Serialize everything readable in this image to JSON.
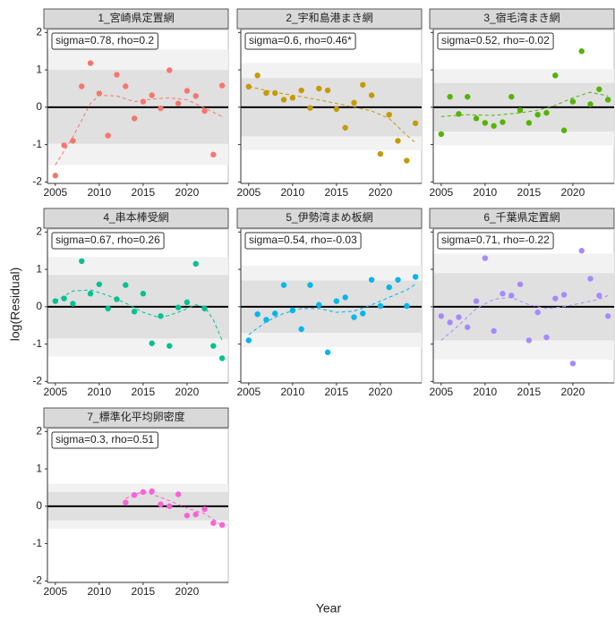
{
  "x_label": "Year",
  "y_label": "log(Residual)",
  "chart_data": [
    {
      "type": "scatter",
      "title": "1_宮崎県定置網",
      "annotation": "sigma=0.78, rho=0.2",
      "color": "#F8766D",
      "x": [
        2005,
        2006,
        2007,
        2008,
        2009,
        2010,
        2011,
        2012,
        2013,
        2014,
        2015,
        2016,
        2017,
        2018,
        2019,
        2020,
        2021,
        2022,
        2023,
        2024
      ],
      "values": [
        -1.83,
        -1.02,
        -0.9,
        0.56,
        1.18,
        0.37,
        -0.76,
        0.87,
        0.56,
        -0.3,
        0.15,
        0.32,
        -0.03,
        0.99,
        0.1,
        0.44,
        0.3,
        -0.1,
        -1.27,
        0.58
      ],
      "trend": {
        "x": [
          2005,
          2007,
          2009,
          2010,
          2012,
          2014,
          2016,
          2018,
          2020,
          2022,
          2024
        ],
        "values": [
          -1.55,
          -0.8,
          0.1,
          0.32,
          0.3,
          0.15,
          0.22,
          0.25,
          0.2,
          -0.02,
          -0.25
        ]
      },
      "band_inner": [
        -0.98,
        1.0
      ],
      "band_outer": [
        -1.55,
        1.55
      ],
      "hline": 0,
      "xlim": [
        2004.1,
        2024.7
      ],
      "ylim": [
        -2.04,
        2.08
      ],
      "xticks": [
        2005,
        2010,
        2015,
        2020
      ],
      "yticks": [
        -2,
        -1,
        0,
        1,
        2
      ]
    },
    {
      "type": "scatter",
      "title": "2_宇和島港まき網",
      "annotation": "sigma=0.6, rho=0.46*",
      "color": "#C49A00",
      "x": [
        2005,
        2006,
        2007,
        2008,
        2009,
        2010,
        2011,
        2012,
        2013,
        2014,
        2015,
        2016,
        2017,
        2018,
        2019,
        2020,
        2021,
        2022,
        2023,
        2024
      ],
      "values": [
        0.55,
        0.85,
        0.38,
        0.38,
        0.2,
        0.25,
        0.45,
        -0.02,
        0.5,
        0.45,
        -0.05,
        -0.55,
        0.12,
        0.6,
        0.32,
        -1.25,
        -0.2,
        -0.9,
        -1.43,
        -0.43
      ],
      "trend": {
        "x": [
          2005,
          2008,
          2011,
          2014,
          2017,
          2019,
          2021,
          2023,
          2024
        ],
        "values": [
          0.55,
          0.4,
          0.28,
          0.15,
          0.0,
          -0.1,
          -0.3,
          -0.75,
          -0.95
        ]
      },
      "band_inner": [
        -0.78,
        0.78
      ],
      "band_outer": [
        -1.15,
        1.18
      ],
      "hline": 0,
      "xlim": [
        2004.1,
        2024.7
      ],
      "ylim": [
        -2.04,
        2.08
      ],
      "xticks": [
        2005,
        2010,
        2015,
        2020
      ],
      "yticks": [
        -2,
        -1,
        0,
        1,
        2
      ]
    },
    {
      "type": "scatter",
      "title": "3_宿毛湾まき網",
      "annotation": "sigma=0.52, rho=-0.02",
      "color": "#53B400",
      "x": [
        2005,
        2006,
        2007,
        2008,
        2009,
        2010,
        2011,
        2012,
        2013,
        2014,
        2015,
        2016,
        2017,
        2018,
        2019,
        2020,
        2021,
        2022,
        2023,
        2024
      ],
      "values": [
        -0.72,
        0.28,
        -0.18,
        0.28,
        -0.3,
        -0.42,
        -0.5,
        -0.4,
        0.28,
        -0.08,
        -0.42,
        -0.2,
        -0.15,
        0.85,
        -0.62,
        0.15,
        1.5,
        0.08,
        0.48,
        0.2
      ],
      "trend": {
        "x": [
          2005,
          2008,
          2011,
          2014,
          2016,
          2018,
          2020,
          2022,
          2024
        ],
        "values": [
          -0.25,
          -0.2,
          -0.22,
          -0.15,
          -0.08,
          0.05,
          0.25,
          0.4,
          0.3
        ]
      },
      "band_inner": [
        -0.65,
        0.65
      ],
      "band_outer": [
        -1.02,
        1.02
      ],
      "hline": 0,
      "xlim": [
        2004.1,
        2024.7
      ],
      "ylim": [
        -2.04,
        2.08
      ],
      "xticks": [
        2005,
        2010,
        2015,
        2020
      ],
      "yticks": [
        -2,
        -1,
        0,
        1,
        2
      ]
    },
    {
      "type": "scatter",
      "title": "4_串本棒受網",
      "annotation": "sigma=0.67, rho=0.26",
      "color": "#00C094",
      "x": [
        2005,
        2006,
        2007,
        2008,
        2009,
        2010,
        2011,
        2012,
        2013,
        2014,
        2015,
        2016,
        2017,
        2018,
        2019,
        2020,
        2021,
        2022,
        2023,
        2024
      ],
      "values": [
        0.15,
        0.22,
        0.08,
        1.22,
        0.35,
        0.6,
        -0.05,
        0.2,
        0.58,
        -0.13,
        0.35,
        -0.98,
        -0.25,
        -1.05,
        -0.02,
        0.12,
        1.15,
        -0.05,
        -1.05,
        -1.38
      ],
      "trend": {
        "x": [
          2005,
          2007,
          2009,
          2011,
          2013,
          2015,
          2017,
          2019,
          2021,
          2022,
          2023,
          2024
        ],
        "values": [
          0.15,
          0.42,
          0.45,
          0.3,
          0.1,
          -0.15,
          -0.3,
          -0.15,
          0.05,
          0.0,
          -0.35,
          -0.9
        ]
      },
      "band_inner": [
        -0.85,
        0.85
      ],
      "band_outer": [
        -1.33,
        1.33
      ],
      "hline": 0,
      "xlim": [
        2004.1,
        2024.7
      ],
      "ylim": [
        -2.04,
        2.08
      ],
      "xticks": [
        2005,
        2010,
        2015,
        2020
      ],
      "yticks": [
        -2,
        -1,
        0,
        1,
        2
      ]
    },
    {
      "type": "scatter",
      "title": "5_伊勢湾まめ板網",
      "annotation": "sigma=0.54, rho=-0.03",
      "color": "#00B6EB",
      "x": [
        2005,
        2006,
        2007,
        2008,
        2009,
        2010,
        2011,
        2012,
        2013,
        2014,
        2015,
        2016,
        2017,
        2018,
        2019,
        2020,
        2021,
        2022,
        2023,
        2024
      ],
      "values": [
        -0.9,
        -0.2,
        -0.35,
        -0.18,
        0.58,
        -0.1,
        -0.6,
        0.58,
        0.05,
        -1.22,
        0.15,
        0.25,
        -0.28,
        -0.18,
        0.72,
        0.02,
        0.52,
        0.72,
        0.02,
        0.8
      ],
      "trend": {
        "x": [
          2005,
          2007,
          2009,
          2011,
          2013,
          2015,
          2017,
          2019,
          2021,
          2023,
          2024
        ],
        "values": [
          -0.75,
          -0.4,
          -0.18,
          -0.05,
          -0.05,
          -0.15,
          -0.12,
          0.05,
          0.25,
          0.45,
          0.6
        ]
      },
      "band_inner": [
        -0.7,
        0.7
      ],
      "band_outer": [
        -1.08,
        1.1
      ],
      "hline": 0,
      "xlim": [
        2004.1,
        2024.7
      ],
      "ylim": [
        -2.04,
        2.08
      ],
      "xticks": [
        2005,
        2010,
        2015,
        2020
      ],
      "yticks": [
        -2,
        -1,
        0,
        1,
        2
      ]
    },
    {
      "type": "scatter",
      "title": "6_千葉県定置網",
      "annotation": "sigma=0.71, rho=-0.22",
      "color": "#A58AFF",
      "x": [
        2005,
        2006,
        2007,
        2008,
        2009,
        2010,
        2011,
        2012,
        2013,
        2014,
        2015,
        2016,
        2017,
        2018,
        2019,
        2020,
        2021,
        2022,
        2023,
        2024
      ],
      "values": [
        -0.25,
        -0.42,
        -0.28,
        -0.55,
        0.15,
        1.3,
        -0.65,
        0.35,
        0.3,
        0.6,
        -0.9,
        -0.15,
        -0.82,
        0.22,
        0.32,
        -1.52,
        1.5,
        0.75,
        0.3,
        -0.25
      ],
      "trend": {
        "x": [
          2005,
          2007,
          2009,
          2011,
          2013,
          2015,
          2017,
          2019,
          2021,
          2023,
          2024
        ],
        "values": [
          -0.9,
          -0.5,
          -0.05,
          0.2,
          0.25,
          0.05,
          -0.05,
          0.0,
          0.1,
          0.2,
          0.3
        ]
      },
      "band_inner": [
        -0.9,
        0.9
      ],
      "band_outer": [
        -1.42,
        1.42
      ],
      "hline": 0,
      "xlim": [
        2004.1,
        2024.7
      ],
      "ylim": [
        -2.04,
        2.08
      ],
      "xticks": [
        2005,
        2010,
        2015,
        2020
      ],
      "yticks": [
        -2,
        -1,
        0,
        1,
        2
      ]
    },
    {
      "type": "scatter",
      "title": "7_標準化平均卵密度",
      "annotation": "sigma=0.3, rho=0.51",
      "color": "#FB61D7",
      "x": [
        2013,
        2014,
        2015,
        2016,
        2017,
        2018,
        2019,
        2020,
        2021,
        2022,
        2023,
        2024
      ],
      "values": [
        0.1,
        0.3,
        0.38,
        0.4,
        0.05,
        0.0,
        0.32,
        -0.25,
        -0.22,
        -0.08,
        -0.45,
        -0.5
      ],
      "trend": {
        "x": [
          2013,
          2014,
          2015,
          2016,
          2018,
          2020,
          2022,
          2023,
          2024
        ],
        "values": [
          0.2,
          0.32,
          0.38,
          0.32,
          0.15,
          -0.05,
          -0.2,
          -0.35,
          -0.52
        ]
      },
      "band_inner": [
        -0.38,
        0.38
      ],
      "band_outer": [
        -0.6,
        0.6
      ],
      "hline": 0,
      "xlim": [
        2004.1,
        2024.7
      ],
      "ylim": [
        -2.04,
        2.08
      ],
      "xticks": [
        2005,
        2010,
        2015,
        2020
      ],
      "yticks": [
        -2,
        -1,
        0,
        1,
        2
      ]
    }
  ]
}
